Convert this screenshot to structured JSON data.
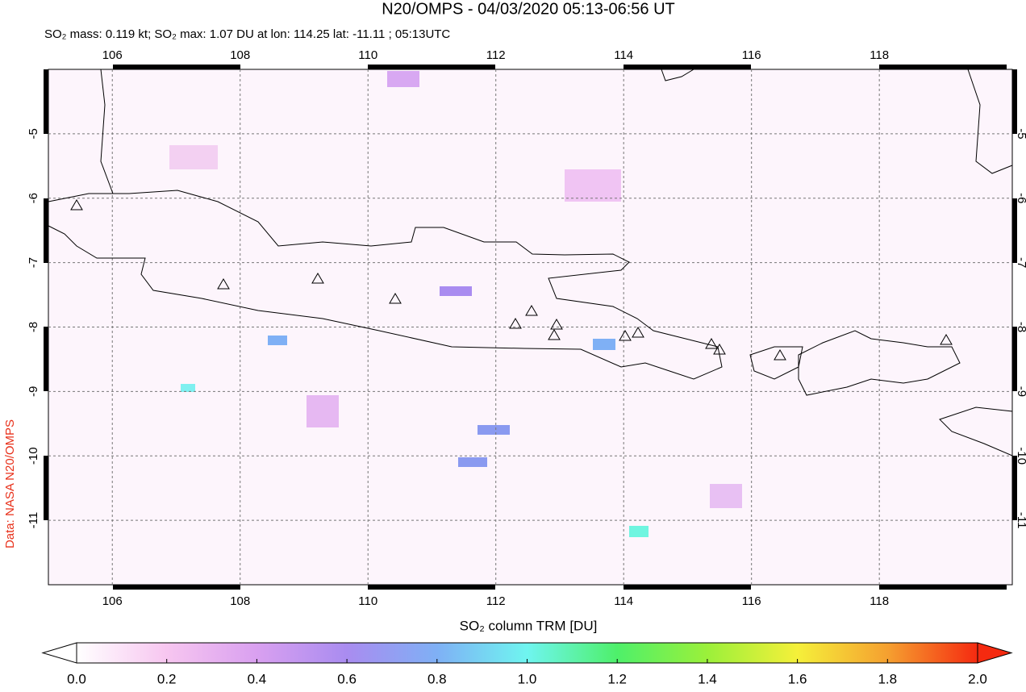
{
  "chart_data": {
    "type": "map",
    "title": "N20/OMPS - 04/03/2020 05:13-06:56 UT",
    "subtitle": "SO₂ mass: 0.119 kt; SO₂ max: 1.07 DU at lon: 114.25 lat: -11.11 ; 05:13UTC",
    "source_label": "Data: NASA N20/OMPS",
    "xlim": [
      105,
      120.08
    ],
    "ylim": [
      -12,
      -4
    ],
    "xticks": [
      106,
      108,
      110,
      112,
      114,
      116,
      118
    ],
    "yticks": [
      -5,
      -6,
      -7,
      -8,
      -9,
      -10,
      -11
    ],
    "grid": true,
    "colorbar": {
      "label": "SO₂ column TRM [DU]",
      "lim": [
        0,
        2
      ],
      "ticks": [
        {
          "value": 0,
          "label": "0.0"
        },
        {
          "value": 0.2,
          "label": "0.2"
        },
        {
          "value": 0.4,
          "label": "0.4"
        },
        {
          "value": 0.6,
          "label": "0.6"
        },
        {
          "value": 0.8,
          "label": "0.8"
        },
        {
          "value": 1,
          "label": "1.0"
        },
        {
          "value": 1.2,
          "label": "1.2"
        },
        {
          "value": 1.4,
          "label": "1.4"
        },
        {
          "value": 1.6,
          "label": "1.6"
        },
        {
          "value": 1.8,
          "label": "1.8"
        },
        {
          "value": 2,
          "label": "2.0"
        }
      ],
      "colormap": [
        "#ffffff",
        "#f7c6f0",
        "#d9a0f0",
        "#a98cf0",
        "#7fb0f5",
        "#6ff5f0",
        "#4ef06a",
        "#9bf03a",
        "#f5f03a",
        "#f5a030",
        "#f52a10"
      ]
    }
  }
}
